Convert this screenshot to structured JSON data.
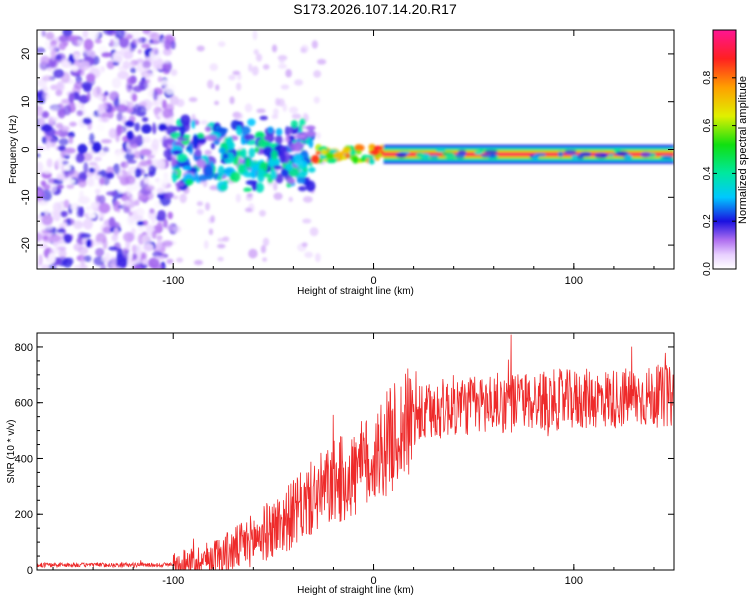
{
  "title": "S173.2026.107.14.20.R17",
  "colors": {
    "snr_line": "#ee2a2a",
    "axis": "#000000",
    "background": "#ffffff"
  },
  "colorbar": {
    "label": "Normalized spectral amplitude",
    "ticks": [
      "0.0",
      "0.2",
      "0.4",
      "0.6",
      "0.8"
    ],
    "tick_values": [
      0.0,
      0.2,
      0.4,
      0.6,
      0.8
    ],
    "range": [
      0,
      1
    ]
  },
  "chart_data": [
    {
      "type": "heatmap",
      "xlabel": "Height of straight line (km)",
      "ylabel": "Frequency (Hz)",
      "xlim": [
        -168,
        150
      ],
      "ylim": [
        -25,
        25
      ],
      "x_ticks": [
        "-100",
        "0",
        "100"
      ],
      "x_tick_values": [
        -100,
        0,
        100
      ],
      "y_ticks": [
        "-20",
        "-10",
        "0",
        "10",
        "20"
      ],
      "y_tick_values": [
        -20,
        -10,
        0,
        10,
        20
      ],
      "regions": [
        {
          "name": "noise",
          "x_range": [
            -168,
            -100
          ],
          "freq_range": [
            -25,
            25
          ],
          "amplitude": [
            0.0,
            0.2
          ]
        },
        {
          "name": "scattered",
          "x_range": [
            -100,
            -30
          ],
          "freq_range": [
            -10,
            11
          ],
          "amplitude": [
            0.1,
            0.45
          ]
        },
        {
          "name": "transition",
          "x_range": [
            -30,
            5
          ],
          "freq_range": [
            -3,
            1
          ],
          "amplitude": [
            0.3,
            0.9
          ]
        },
        {
          "name": "steady-line",
          "x_range": [
            5,
            150
          ],
          "freq_range": [
            -2,
            0
          ],
          "amplitude": [
            0.7,
            1.0
          ]
        }
      ]
    },
    {
      "type": "line",
      "xlabel": "Height of straight line (km)",
      "ylabel": "SNR (10 * v/v)",
      "xlim": [
        -168,
        150
      ],
      "ylim": [
        0,
        850
      ],
      "x_ticks": [
        "-100",
        "0",
        "100"
      ],
      "x_tick_values": [
        -100,
        0,
        100
      ],
      "y_ticks": [
        "0",
        "200",
        "400",
        "600",
        "800"
      ],
      "y_tick_values": [
        0,
        200,
        400,
        600,
        800
      ],
      "series": [
        {
          "name": "SNR",
          "x": [
            -168,
            -150,
            -130,
            -110,
            -100,
            -90,
            -80,
            -70,
            -60,
            -50,
            -40,
            -30,
            -20,
            -10,
            0,
            10,
            20,
            30,
            40,
            50,
            60,
            70,
            80,
            90,
            100,
            110,
            120,
            130,
            140,
            150
          ],
          "y": [
            18,
            18,
            18,
            18,
            20,
            30,
            45,
            70,
            110,
            150,
            200,
            260,
            310,
            340,
            400,
            480,
            540,
            570,
            590,
            590,
            600,
            600,
            605,
            610,
            610,
            615,
            615,
            620,
            620,
            620
          ]
        }
      ]
    }
  ]
}
